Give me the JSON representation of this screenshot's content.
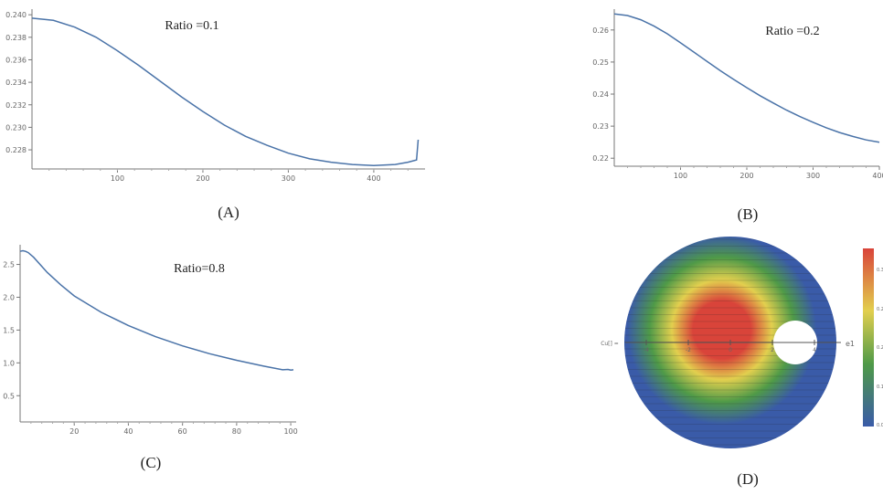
{
  "chart_data": [
    {
      "id": "A",
      "type": "line",
      "annotation": "Ratio =0.1",
      "caption": "(A)",
      "x": [
        0,
        25,
        50,
        75,
        100,
        125,
        150,
        175,
        200,
        225,
        250,
        275,
        300,
        325,
        350,
        375,
        400,
        425,
        440,
        450,
        451,
        452
      ],
      "y": [
        0.2397,
        0.2395,
        0.2389,
        0.238,
        0.2368,
        0.2355,
        0.2341,
        0.2327,
        0.2314,
        0.2302,
        0.2292,
        0.2284,
        0.2277,
        0.2272,
        0.2269,
        0.2267,
        0.2266,
        0.2267,
        0.2269,
        0.2271,
        0.228,
        0.2289
      ],
      "xticks": [
        100,
        200,
        300,
        400
      ],
      "yticks": [
        0.228,
        0.23,
        0.232,
        0.234,
        0.236,
        0.238,
        0.24
      ],
      "ytick_labels": [
        "0.228",
        "0.230",
        "0.232",
        "0.234",
        "0.236",
        "0.238",
        "0.240"
      ],
      "xlim": [
        0,
        460
      ],
      "ylim": [
        0.2263,
        0.2405
      ]
    },
    {
      "id": "B",
      "type": "line",
      "annotation": "Ratio =0.2",
      "caption": "(B)",
      "x": [
        0,
        20,
        40,
        60,
        80,
        100,
        120,
        140,
        160,
        180,
        200,
        220,
        240,
        260,
        280,
        300,
        320,
        340,
        360,
        380,
        400
      ],
      "y": [
        0.265,
        0.2645,
        0.2632,
        0.2612,
        0.2588,
        0.256,
        0.2531,
        0.2502,
        0.2473,
        0.2446,
        0.242,
        0.2395,
        0.2372,
        0.235,
        0.233,
        0.2312,
        0.2295,
        0.228,
        0.2268,
        0.2257,
        0.225
      ],
      "xticks": [
        100,
        200,
        300,
        400
      ],
      "yticks": [
        0.22,
        0.23,
        0.24,
        0.25,
        0.26
      ],
      "ytick_labels": [
        "0.22",
        "0.23",
        "0.24",
        "0.25",
        "0.26"
      ],
      "xlim": [
        0,
        400
      ],
      "ylim": [
        0.2175,
        0.2665
      ]
    },
    {
      "id": "C",
      "type": "line",
      "annotation": "Ratio=0.8",
      "caption": "(C)",
      "x": [
        0,
        1,
        2,
        3,
        5,
        10,
        15,
        20,
        30,
        40,
        50,
        60,
        70,
        80,
        90,
        97,
        99,
        100,
        101
      ],
      "y": [
        2.7,
        2.71,
        2.7,
        2.68,
        2.61,
        2.38,
        2.19,
        2.02,
        1.77,
        1.57,
        1.4,
        1.26,
        1.14,
        1.04,
        0.95,
        0.895,
        0.9,
        0.89,
        0.895
      ],
      "xticks": [
        20,
        40,
        60,
        80,
        100
      ],
      "yticks": [
        0.5,
        1.0,
        1.5,
        2.0,
        2.5
      ],
      "ytick_labels": [
        "0.5",
        "1.0",
        "1.5",
        "2.0",
        "2.5"
      ],
      "xlim": [
        0,
        102
      ],
      "ylim": [
        0.1,
        2.8
      ]
    },
    {
      "id": "D",
      "type": "heatmap",
      "caption": "(D)",
      "axis_left_label": "Cu[] =",
      "axis_right_label": "e1",
      "xticks": [
        -4,
        -2,
        0,
        2,
        4
      ],
      "colorbar_labels": [
        "0.3",
        "0.2",
        "0.2",
        "0.1",
        "0.0",
        "0"
      ],
      "colors": [
        "#3a5ba8",
        "#4f9a48",
        "#e2cf4e",
        "#d9443a"
      ]
    }
  ]
}
